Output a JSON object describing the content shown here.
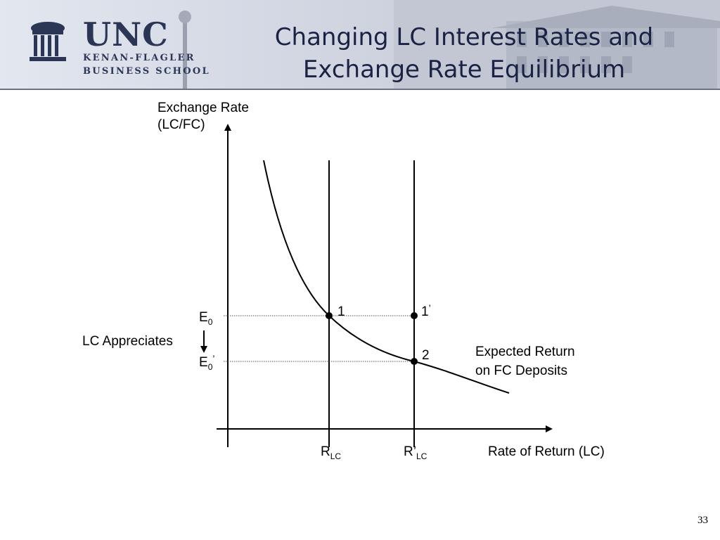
{
  "header": {
    "logo_main": "UNC",
    "logo_line1": "KENAN-FLAGLER",
    "logo_line2": "BUSINESS SCHOOL",
    "title_line1": "Changing LC Interest Rates and",
    "title_line2": "Exchange Rate Equilibrium"
  },
  "diagram": {
    "y_axis_label_line1": "Exchange Rate",
    "y_axis_label_line2": "(LC/FC)",
    "x_axis_label": "Rate of Return (LC)",
    "r_lc": "R",
    "r_lc_sub": "LC",
    "r_lc_prime": "R’",
    "r_lc_prime_sub": "LC",
    "e0": "E",
    "e0_sub": "0",
    "e0_prime": "E",
    "e0_prime_sub": "0",
    "e0_prime_mark": "’",
    "lc_appreciates": "LC Appreciates",
    "point1": "1",
    "point1_prime": "1",
    "point1_prime_mark": "’",
    "point2": "2",
    "curve_label_line1": "Expected Return",
    "curve_label_line2": "on FC Deposits"
  },
  "page_number": "33"
}
